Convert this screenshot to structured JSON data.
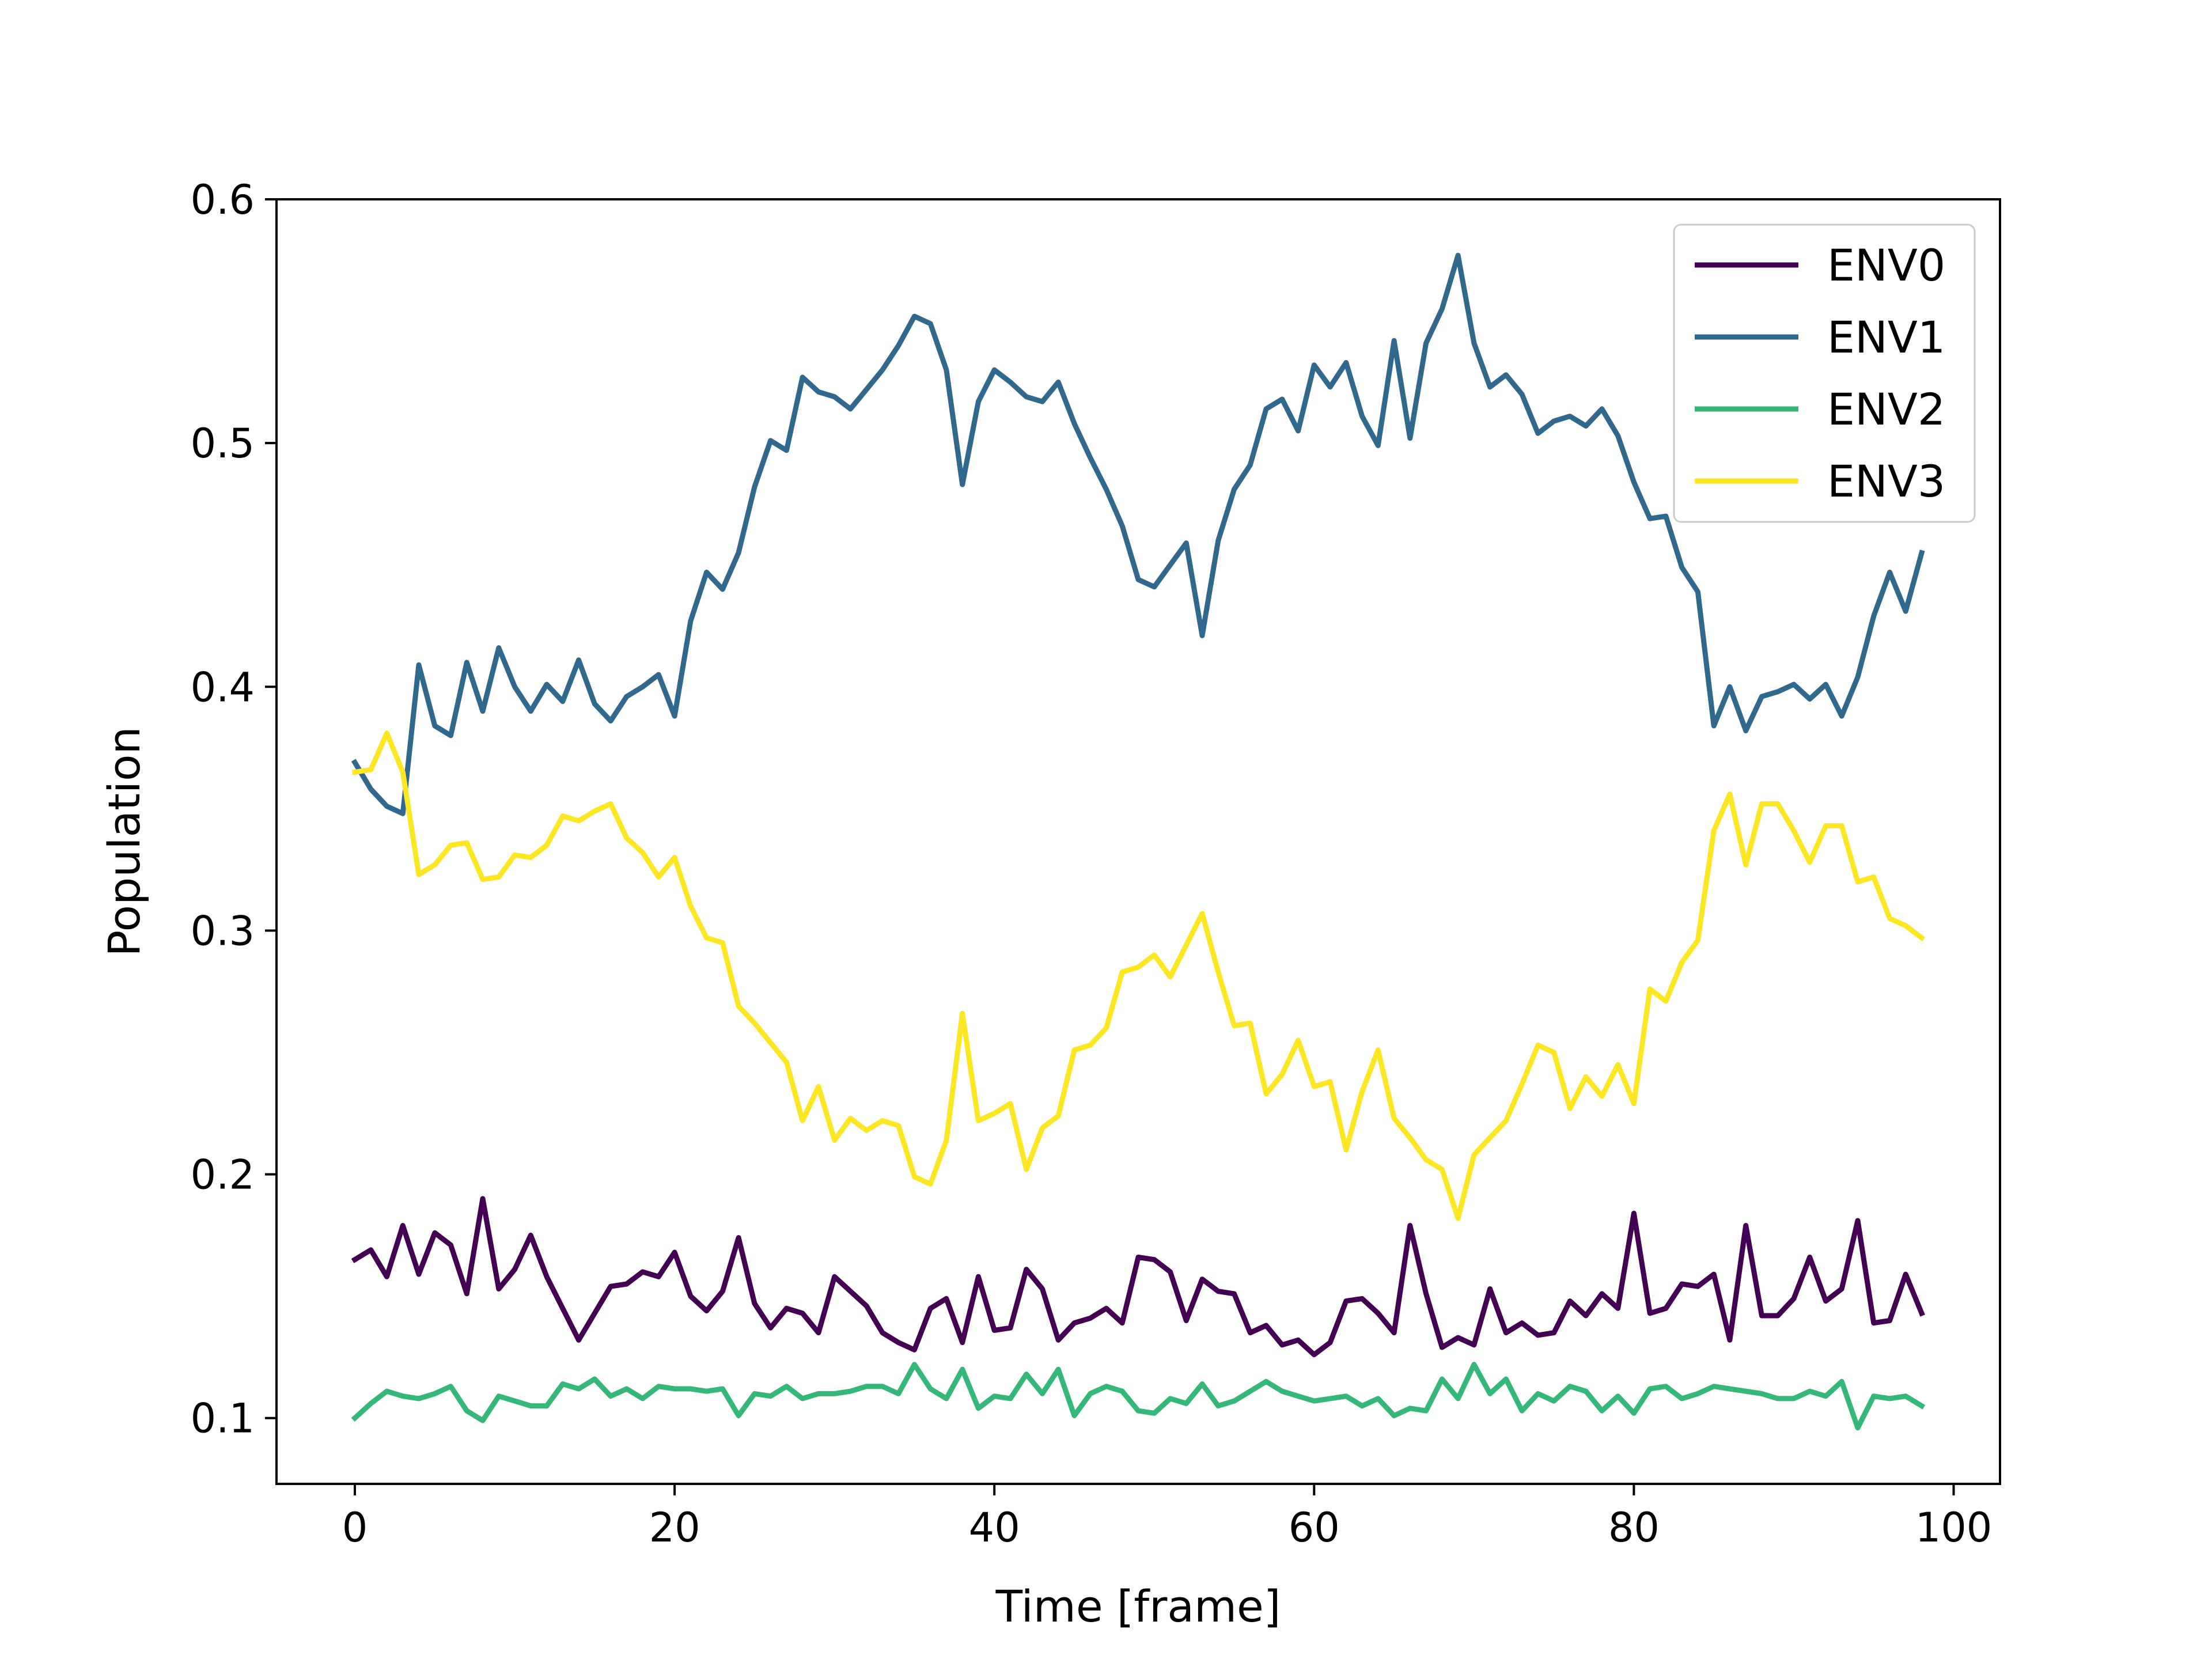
{
  "chart_data": {
    "type": "line",
    "title": "",
    "xlabel": "Time [frame]",
    "ylabel": "Population",
    "xlim": [
      -4.9,
      102.9
    ],
    "ylim": [
      0.073,
      0.6
    ],
    "xticks": [
      0,
      20,
      40,
      60,
      80,
      100
    ],
    "xtick_labels": [
      "0",
      "20",
      "40",
      "60",
      "80",
      "100"
    ],
    "yticks": [
      0.1,
      0.2,
      0.3,
      0.4,
      0.5,
      0.6
    ],
    "ytick_labels": [
      "0.1",
      "0.2",
      "0.3",
      "0.4",
      "0.5",
      "0.6"
    ],
    "grid": false,
    "legend_position": "top-right",
    "x": [
      0,
      1,
      2,
      3,
      4,
      5,
      6,
      7,
      8,
      9,
      10,
      11,
      12,
      13,
      14,
      15,
      16,
      17,
      18,
      19,
      20,
      21,
      22,
      23,
      24,
      25,
      26,
      27,
      28,
      29,
      30,
      31,
      32,
      33,
      34,
      35,
      36,
      37,
      38,
      39,
      40,
      41,
      42,
      43,
      44,
      45,
      46,
      47,
      48,
      49,
      50,
      51,
      52,
      53,
      54,
      55,
      56,
      57,
      58,
      59,
      60,
      61,
      62,
      63,
      64,
      65,
      66,
      67,
      68,
      69,
      70,
      71,
      72,
      73,
      74,
      75,
      76,
      77,
      78,
      79,
      80,
      81,
      82,
      83,
      84,
      85,
      86,
      87,
      88,
      89,
      90,
      91,
      92,
      93,
      94,
      95,
      96,
      97,
      98
    ],
    "series": [
      {
        "name": "ENV0",
        "color": "#440154",
        "values": [
          0.165,
          0.169,
          0.158,
          0.179,
          0.159,
          0.176,
          0.171,
          0.151,
          0.19,
          0.153,
          0.161,
          0.175,
          0.158,
          0.145,
          0.132,
          0.143,
          0.154,
          0.155,
          0.16,
          0.158,
          0.168,
          0.15,
          0.144,
          0.152,
          0.174,
          0.147,
          0.137,
          0.145,
          0.143,
          0.135,
          0.158,
          0.152,
          0.146,
          0.135,
          0.131,
          0.128,
          0.145,
          0.149,
          0.131,
          0.158,
          0.136,
          0.137,
          0.161,
          0.153,
          0.132,
          0.139,
          0.141,
          0.145,
          0.139,
          0.166,
          0.165,
          0.16,
          0.14,
          0.157,
          0.152,
          0.151,
          0.135,
          0.138,
          0.13,
          0.132,
          0.126,
          0.131,
          0.148,
          0.149,
          0.143,
          0.135,
          0.179,
          0.151,
          0.129,
          0.133,
          0.13,
          0.153,
          0.135,
          0.139,
          0.134,
          0.135,
          0.148,
          0.142,
          0.151,
          0.145,
          0.184,
          0.143,
          0.145,
          0.155,
          0.154,
          0.159,
          0.132,
          0.179,
          0.142,
          0.142,
          0.149,
          0.166,
          0.148,
          0.153,
          0.181,
          0.139,
          0.14,
          0.159,
          0.143
        ]
      },
      {
        "name": "ENV1",
        "color": "#31688e",
        "values": [
          0.369,
          0.358,
          0.351,
          0.348,
          0.409,
          0.384,
          0.38,
          0.41,
          0.39,
          0.416,
          0.4,
          0.39,
          0.401,
          0.394,
          0.411,
          0.393,
          0.386,
          0.396,
          0.4,
          0.405,
          0.388,
          0.427,
          0.447,
          0.44,
          0.455,
          0.482,
          0.501,
          0.497,
          0.527,
          0.521,
          0.519,
          0.514,
          0.522,
          0.53,
          0.54,
          0.552,
          0.549,
          0.53,
          0.483,
          0.517,
          0.53,
          0.525,
          0.519,
          0.517,
          0.525,
          0.508,
          0.494,
          0.481,
          0.466,
          0.444,
          0.441,
          0.45,
          0.459,
          0.421,
          0.46,
          0.481,
          0.491,
          0.514,
          0.518,
          0.505,
          0.532,
          0.523,
          0.533,
          0.511,
          0.499,
          0.542,
          0.502,
          0.541,
          0.555,
          0.577,
          0.541,
          0.523,
          0.528,
          0.52,
          0.504,
          0.509,
          0.511,
          0.507,
          0.514,
          0.503,
          0.484,
          0.469,
          0.47,
          0.449,
          0.439,
          0.384,
          0.4,
          0.382,
          0.396,
          0.398,
          0.401,
          0.395,
          0.401,
          0.388,
          0.404,
          0.429,
          0.447,
          0.431,
          0.455
        ]
      },
      {
        "name": "ENV2",
        "color": "#35b779",
        "values": [
          0.1,
          0.106,
          0.111,
          0.109,
          0.108,
          0.11,
          0.113,
          0.103,
          0.099,
          0.109,
          0.107,
          0.105,
          0.105,
          0.114,
          0.112,
          0.116,
          0.109,
          0.112,
          0.108,
          0.113,
          0.112,
          0.112,
          0.111,
          0.112,
          0.101,
          0.11,
          0.109,
          0.113,
          0.108,
          0.11,
          0.11,
          0.111,
          0.113,
          0.113,
          0.11,
          0.122,
          0.112,
          0.108,
          0.12,
          0.104,
          0.109,
          0.108,
          0.118,
          0.11,
          0.12,
          0.101,
          0.11,
          0.113,
          0.111,
          0.103,
          0.102,
          0.108,
          0.106,
          0.114,
          0.105,
          0.107,
          0.111,
          0.115,
          0.111,
          0.109,
          0.107,
          0.108,
          0.109,
          0.105,
          0.108,
          0.101,
          0.104,
          0.103,
          0.116,
          0.108,
          0.122,
          0.11,
          0.116,
          0.103,
          0.11,
          0.107,
          0.113,
          0.111,
          0.103,
          0.109,
          0.102,
          0.112,
          0.113,
          0.108,
          0.11,
          0.113,
          0.112,
          0.111,
          0.11,
          0.108,
          0.108,
          0.111,
          0.109,
          0.115,
          0.096,
          0.109,
          0.108,
          0.109,
          0.105
        ]
      },
      {
        "name": "ENV3",
        "color": "#fde725",
        "values": [
          0.365,
          0.366,
          0.381,
          0.365,
          0.323,
          0.327,
          0.335,
          0.336,
          0.321,
          0.322,
          0.331,
          0.33,
          0.335,
          0.347,
          0.345,
          0.349,
          0.352,
          0.338,
          0.332,
          0.322,
          0.33,
          0.31,
          0.297,
          0.295,
          0.269,
          0.262,
          0.254,
          0.246,
          0.222,
          0.236,
          0.214,
          0.223,
          0.218,
          0.222,
          0.22,
          0.199,
          0.196,
          0.214,
          0.266,
          0.222,
          0.225,
          0.229,
          0.202,
          0.219,
          0.224,
          0.251,
          0.253,
          0.26,
          0.283,
          0.285,
          0.29,
          0.281,
          0.294,
          0.307,
          0.283,
          0.261,
          0.262,
          0.233,
          0.241,
          0.255,
          0.236,
          0.238,
          0.21,
          0.234,
          0.251,
          0.223,
          0.215,
          0.206,
          0.202,
          0.182,
          0.208,
          0.215,
          0.222,
          0.237,
          0.253,
          0.25,
          0.227,
          0.24,
          0.232,
          0.245,
          0.229,
          0.276,
          0.271,
          0.287,
          0.296,
          0.341,
          0.356,
          0.327,
          0.352,
          0.352,
          0.341,
          0.328,
          0.343,
          0.343,
          0.32,
          0.322,
          0.305,
          0.302,
          0.297
        ]
      }
    ]
  }
}
